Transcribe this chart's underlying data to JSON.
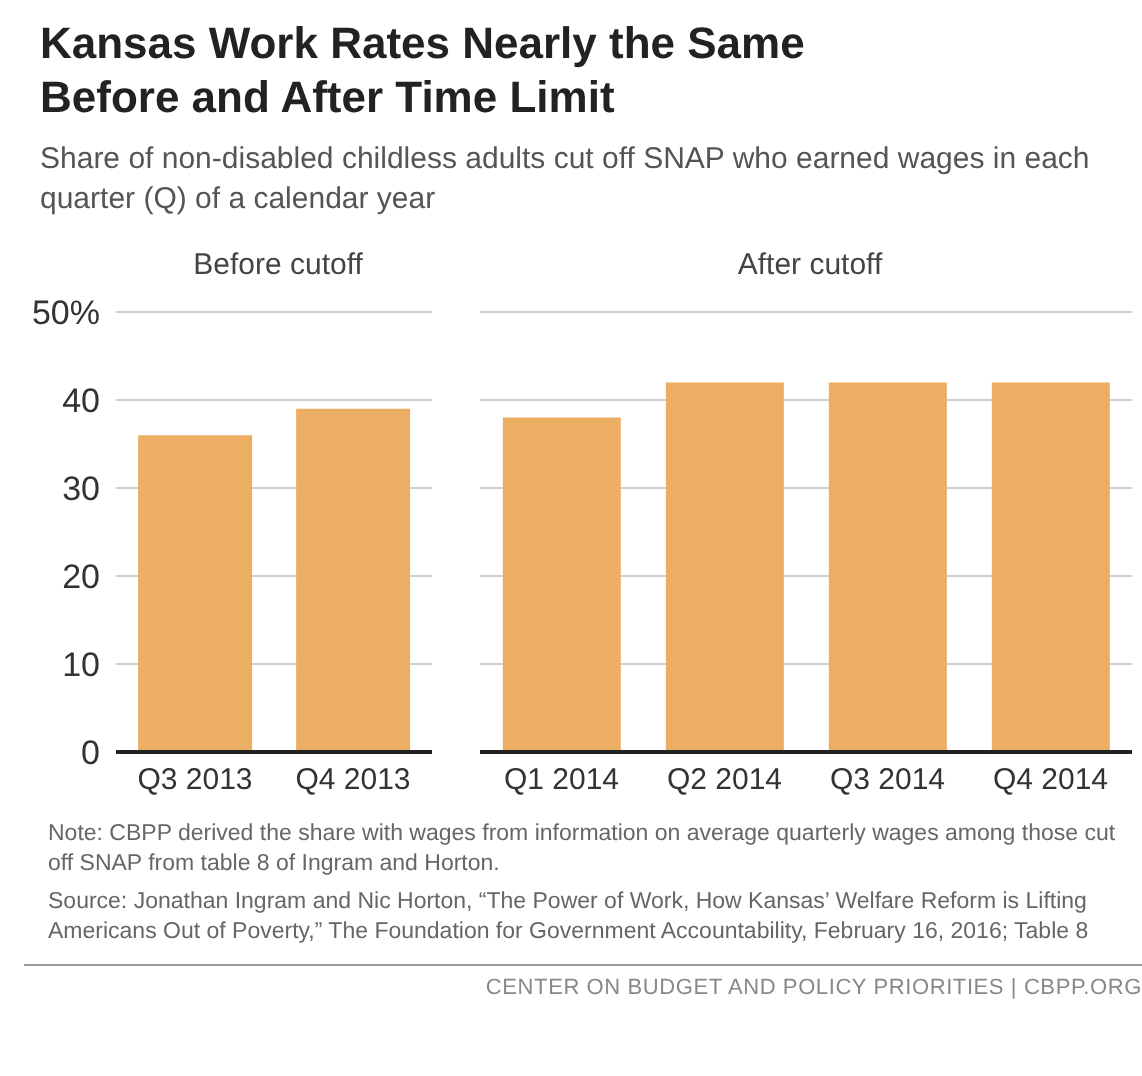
{
  "chart_data": [
    {
      "type": "other",
      "title": "Kansas Work Rates Nearly the Same Before and After Time Limit",
      "subtitle": "Share of non-disabled childless adults cut off SNAP who earned wages in each quarter (Q) of a calendar year"
    },
    {
      "type": "bar",
      "title": "Before cutoff",
      "categories": [
        "Q3 2013",
        "Q4 2013"
      ],
      "values": [
        36,
        39
      ],
      "color": "#ecae62",
      "ylim": [
        0,
        50
      ],
      "yticks": [
        0,
        10,
        20,
        30,
        40,
        {
          "value": 50,
          "label": "50%"
        }
      ],
      "grid": "y"
    },
    {
      "type": "bar",
      "title": "After cutoff",
      "categories": [
        "Q1 2014",
        "Q2 2014",
        "Q3 2014",
        "Q4 2014"
      ],
      "values": [
        38,
        42,
        42,
        42
      ],
      "color": "#ecae62",
      "ylim": [
        0,
        50
      ],
      "yticks": [
        0,
        10,
        20,
        30,
        40,
        50
      ],
      "grid": "y",
      "tick_labels": "x"
    },
    {
      "type": "other",
      "annotations": [
        "Note: CBPP derived the share with wages from information on average quarterly wages among those cut off SNAP from table 8 of Ingram and Horton.",
        "Source: Jonathan Ingram and Nic Horton, “The Power of Work, How Kansas’ Welfare Reform is Lifting Americans Out of Poverty,” The Foundation for Government Accountability, February 16, 2016; Table 8",
        "CENTER ON BUDGET AND POLICY PRIORITIES | CBPP.ORG"
      ]
    }
  ]
}
